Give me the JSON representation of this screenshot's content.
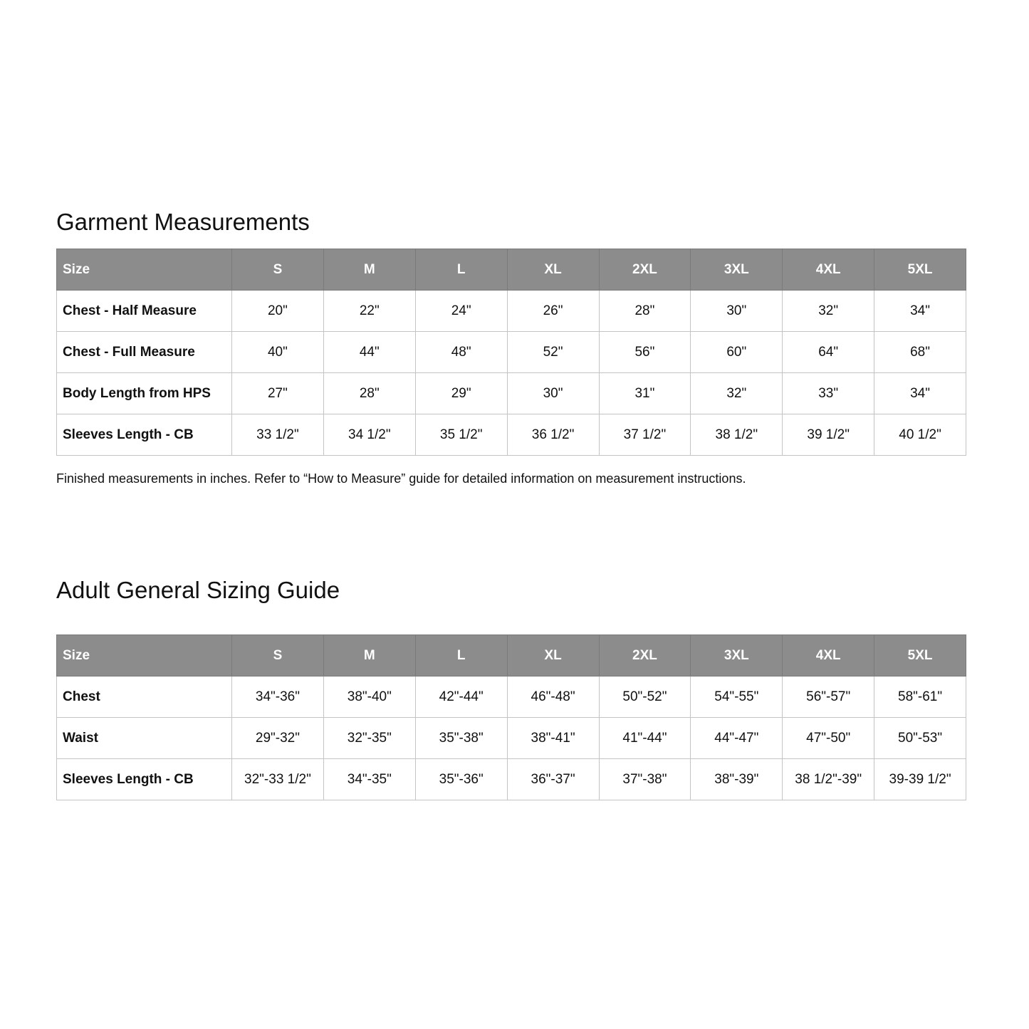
{
  "garment": {
    "title": "Garment Measurements",
    "headers": [
      "Size",
      "S",
      "M",
      "L",
      "XL",
      "2XL",
      "3XL",
      "4XL",
      "5XL"
    ],
    "rows": [
      [
        "Chest - Half Measure",
        "20\"",
        "22\"",
        "24\"",
        "26\"",
        "28\"",
        "30\"",
        "32\"",
        "34\""
      ],
      [
        "Chest - Full Measure",
        "40\"",
        "44\"",
        "48\"",
        "52\"",
        "56\"",
        "60\"",
        "64\"",
        "68\""
      ],
      [
        "Body Length from HPS",
        "27\"",
        "28\"",
        "29\"",
        "30\"",
        "31\"",
        "32\"",
        "33\"",
        "34\""
      ],
      [
        "Sleeves Length - CB",
        "33 1/2\"",
        "34 1/2\"",
        "35 1/2\"",
        "36 1/2\"",
        "37 1/2\"",
        "38 1/2\"",
        "39 1/2\"",
        "40 1/2\""
      ]
    ],
    "note": "Finished measurements in inches. Refer to “How to Measure” guide for detailed information on measurement instructions."
  },
  "sizing": {
    "title": "Adult General Sizing Guide",
    "headers": [
      "Size",
      "S",
      "M",
      "L",
      "XL",
      "2XL",
      "3XL",
      "4XL",
      "5XL"
    ],
    "rows": [
      [
        "Chest",
        "34\"-36\"",
        "38\"-40\"",
        "42\"-44\"",
        "46\"-48\"",
        "50\"-52\"",
        "54\"-55\"",
        "56\"-57\"",
        "58\"-61\""
      ],
      [
        "Waist",
        "29\"-32\"",
        "32\"-35\"",
        "35\"-38\"",
        "38\"-41\"",
        "41\"-44\"",
        "44\"-47\"",
        "47\"-50\"",
        "50\"-53\""
      ],
      [
        "Sleeves Length - CB",
        "32\"-33 1/2\"",
        "34\"-35\"",
        "35\"-36\"",
        "36\"-37\"",
        "37\"-38\"",
        "38\"-39\"",
        "38 1/2\"-39\"",
        "39-39 1/2\""
      ]
    ]
  },
  "colors": {
    "header_bg": "#8c8c8c",
    "header_text": "#ffffff",
    "grid": "#c4c4c4"
  }
}
